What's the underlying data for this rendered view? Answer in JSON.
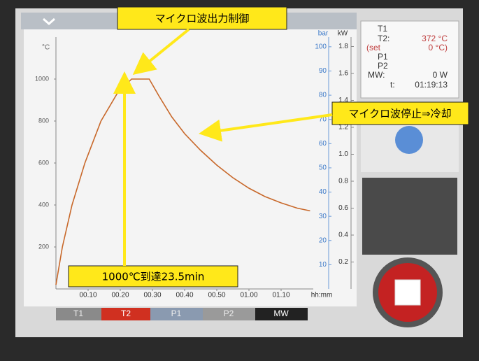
{
  "chart_data": {
    "type": "line",
    "ylabel": "°C",
    "y2label": "bar",
    "y3label": "kW",
    "xlabel": "hh:mm",
    "x": [
      0,
      2,
      5,
      9,
      14,
      19,
      23.5,
      29,
      32,
      36,
      40,
      45,
      50,
      55,
      60,
      65,
      70,
      75,
      79
    ],
    "series": [
      {
        "name": "T2",
        "color": "#c8682a",
        "values": [
          20,
          200,
          400,
          600,
          800,
          930,
          1000,
          1000,
          920,
          820,
          740,
          660,
          590,
          530,
          480,
          440,
          410,
          385,
          372
        ]
      }
    ],
    "xlim": [
      0,
      80
    ],
    "xticks": [
      {
        "value": 10,
        "label": "00.10"
      },
      {
        "value": 20,
        "label": "00.20"
      },
      {
        "value": 30,
        "label": "00.30"
      },
      {
        "value": 40,
        "label": "00.40"
      },
      {
        "value": 50,
        "label": "00.50"
      },
      {
        "value": 60,
        "label": "01.00"
      },
      {
        "value": 70,
        "label": "01.10"
      }
    ],
    "ylim": [
      0,
      1200
    ],
    "yticks": [
      200,
      400,
      600,
      800,
      1000
    ],
    "y2lim": [
      0,
      104
    ],
    "y2ticks": [
      10,
      20,
      30,
      40,
      50,
      60,
      70,
      80,
      90,
      100
    ],
    "y3lim": [
      0,
      1.87
    ],
    "y3ticks": [
      0.2,
      0.4,
      0.6,
      0.8,
      {
        "value": 1,
        "label": "1.0"
      },
      1.2,
      1.4,
      1.6,
      1.8
    ],
    "annotations": [
      "マイクロ波出力制御",
      "マイクロ波停止⇒冷却",
      "1000℃到達23.5min"
    ]
  },
  "tabs": [
    "T1",
    "P1",
    "P2",
    "MW"
  ],
  "status": {
    "labels": [
      "T1",
      "T2:",
      "(set",
      "P1",
      "P2",
      "MW:",
      "t:"
    ],
    "values": [
      "372 °C",
      "0 °C)",
      "0 W",
      "01:19:13"
    ]
  }
}
